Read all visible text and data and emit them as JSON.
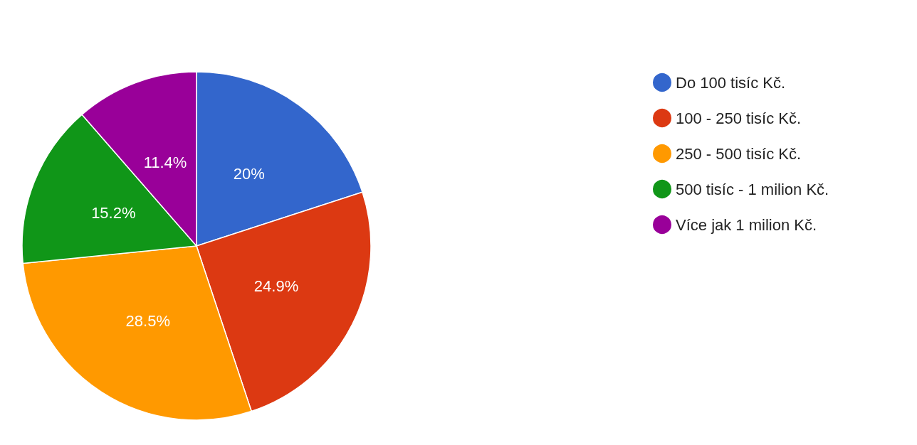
{
  "chart_data": {
    "type": "pie",
    "categories": [
      "Do 100 tisíc Kč.",
      "100 - 250 tisíc Kč.",
      "250 - 500 tisíc Kč.",
      "500 tisíc - 1 milion Kč.",
      "Více jak 1 milion Kč."
    ],
    "values": [
      20,
      24.9,
      28.5,
      15.2,
      11.4
    ],
    "colors": [
      "#3366cc",
      "#dc3912",
      "#ff9900",
      "#109618",
      "#990099"
    ],
    "value_labels": [
      "20%",
      "24.9%",
      "28.5%",
      "15.2%",
      "11.4%"
    ],
    "legend": "right"
  }
}
